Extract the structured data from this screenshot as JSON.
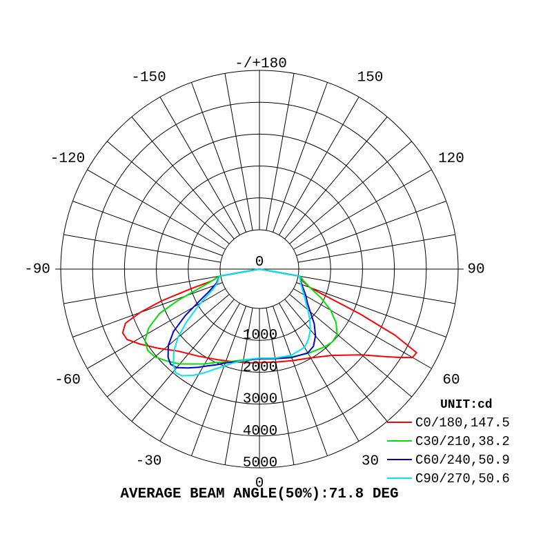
{
  "chart_data": {
    "type": "polar",
    "title": "AVERAGE BEAM ANGLE(50%):71.8 DEG",
    "unit_label": "UNIT:cd",
    "angle_labels": [
      {
        "angle": 180,
        "text": "-/+180"
      },
      {
        "angle": -150,
        "text": "-150"
      },
      {
        "angle": 150,
        "text": "150"
      },
      {
        "angle": -120,
        "text": "-120"
      },
      {
        "angle": 120,
        "text": "120"
      },
      {
        "angle": -90,
        "text": "-90"
      },
      {
        "angle": 90,
        "text": "90"
      },
      {
        "angle": -60,
        "text": "-60"
      },
      {
        "angle": 60,
        "text": "60"
      },
      {
        "angle": -30,
        "text": "-30"
      },
      {
        "angle": 30,
        "text": "30"
      },
      {
        "angle": 0,
        "text": "0"
      }
    ],
    "radial_ticks": [
      {
        "value": 0,
        "text": "0"
      },
      {
        "value": 1000,
        "text": "1000"
      },
      {
        "value": 2000,
        "text": "2000"
      },
      {
        "value": 3000,
        "text": "3000"
      },
      {
        "value": 4000,
        "text": "4000"
      },
      {
        "value": 5000,
        "text": "5000"
      }
    ],
    "rmax": 5000,
    "spoke_step_deg": 10,
    "series": [
      {
        "name": "C0/180,147.5",
        "color": "#ff0000",
        "points": [
          [
            0,
            1700
          ],
          [
            10,
            1730
          ],
          [
            20,
            1820
          ],
          [
            30,
            1980
          ],
          [
            40,
            2300
          ],
          [
            50,
            2950
          ],
          [
            55,
            3550
          ],
          [
            58,
            4000
          ],
          [
            60,
            4310
          ],
          [
            62,
            4350
          ],
          [
            64,
            3500
          ],
          [
            66,
            2200
          ],
          [
            68,
            1000
          ],
          [
            70,
            450
          ],
          [
            75,
            150
          ],
          [
            80,
            50
          ],
          [
            90,
            0
          ],
          [
            -90,
            0
          ],
          [
            -80,
            40
          ],
          [
            -76,
            300
          ],
          [
            -74,
            1000
          ],
          [
            -72,
            2000
          ],
          [
            -70,
            2750
          ],
          [
            -68,
            3300
          ],
          [
            -65,
            3500
          ],
          [
            -62,
            3470
          ],
          [
            -58,
            3200
          ],
          [
            -52,
            2800
          ],
          [
            -45,
            2400
          ],
          [
            -35,
            2100
          ],
          [
            -25,
            1900
          ],
          [
            -15,
            1780
          ],
          [
            -5,
            1720
          ],
          [
            0,
            1700
          ]
        ]
      },
      {
        "name": "C30/210,38.2",
        "color": "#00e000",
        "points": [
          [
            0,
            1560
          ],
          [
            10,
            1600
          ],
          [
            20,
            1700
          ],
          [
            30,
            1820
          ],
          [
            40,
            1950
          ],
          [
            45,
            2000
          ],
          [
            50,
            1950
          ],
          [
            55,
            1700
          ],
          [
            60,
            1350
          ],
          [
            65,
            900
          ],
          [
            70,
            450
          ],
          [
            75,
            200
          ],
          [
            80,
            60
          ],
          [
            90,
            0
          ],
          [
            -90,
            0
          ],
          [
            -80,
            60
          ],
          [
            -76,
            300
          ],
          [
            -72,
            800
          ],
          [
            -69,
            1500
          ],
          [
            -66,
            2200
          ],
          [
            -62,
            2700
          ],
          [
            -58,
            3000
          ],
          [
            -54,
            3100
          ],
          [
            -50,
            3050
          ],
          [
            -45,
            2850
          ],
          [
            -40,
            2650
          ],
          [
            -35,
            2400
          ],
          [
            -30,
            2200
          ],
          [
            -25,
            2000
          ],
          [
            -20,
            1870
          ],
          [
            -15,
            1750
          ],
          [
            -10,
            1660
          ],
          [
            -5,
            1600
          ],
          [
            0,
            1560
          ]
        ]
      },
      {
        "name": "C60/240,50.9",
        "color": "#0000cc",
        "points": [
          [
            0,
            1580
          ],
          [
            10,
            1620
          ],
          [
            20,
            1720
          ],
          [
            30,
            1800
          ],
          [
            35,
            1720
          ],
          [
            40,
            1500
          ],
          [
            45,
            1200
          ],
          [
            50,
            850
          ],
          [
            55,
            600
          ],
          [
            60,
            450
          ],
          [
            65,
            300
          ],
          [
            70,
            180
          ],
          [
            75,
            100
          ],
          [
            80,
            40
          ],
          [
            90,
            0
          ],
          [
            -90,
            0
          ],
          [
            -80,
            40
          ],
          [
            -72,
            180
          ],
          [
            -66,
            500
          ],
          [
            -62,
            900
          ],
          [
            -58,
            1500
          ],
          [
            -54,
            2100
          ],
          [
            -50,
            2500
          ],
          [
            -46,
            2750
          ],
          [
            -43,
            2850
          ],
          [
            -40,
            2800
          ],
          [
            -36,
            2600
          ],
          [
            -32,
            2400
          ],
          [
            -28,
            2200
          ],
          [
            -24,
            2050
          ],
          [
            -20,
            1900
          ],
          [
            -15,
            1780
          ],
          [
            -10,
            1690
          ],
          [
            -5,
            1620
          ],
          [
            0,
            1580
          ]
        ]
      },
      {
        "name": "C90/270,50.6",
        "color": "#00e5ee",
        "points": [
          [
            0,
            1560
          ],
          [
            10,
            1600
          ],
          [
            20,
            1650
          ],
          [
            30,
            1600
          ],
          [
            35,
            1450
          ],
          [
            40,
            1250
          ],
          [
            45,
            1000
          ],
          [
            50,
            750
          ],
          [
            55,
            530
          ],
          [
            60,
            380
          ],
          [
            65,
            250
          ],
          [
            70,
            150
          ],
          [
            80,
            50
          ],
          [
            90,
            0
          ],
          [
            -90,
            0
          ],
          [
            -80,
            40
          ],
          [
            -72,
            150
          ],
          [
            -66,
            380
          ],
          [
            -62,
            700
          ],
          [
            -58,
            1100
          ],
          [
            -54,
            1600
          ],
          [
            -50,
            2100
          ],
          [
            -46,
            2500
          ],
          [
            -42,
            2800
          ],
          [
            -39,
            2950
          ],
          [
            -36,
            2900
          ],
          [
            -32,
            2700
          ],
          [
            -28,
            2450
          ],
          [
            -24,
            2200
          ],
          [
            -20,
            2000
          ],
          [
            -15,
            1800
          ],
          [
            -10,
            1680
          ],
          [
            -5,
            1600
          ],
          [
            0,
            1560
          ]
        ]
      }
    ]
  }
}
